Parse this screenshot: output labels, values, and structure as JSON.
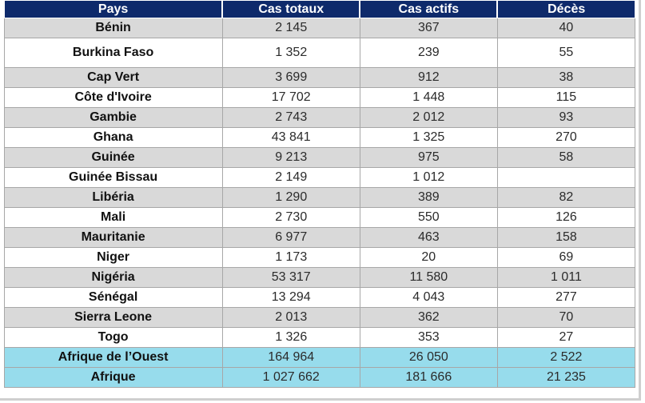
{
  "table": {
    "headers": [
      "Pays",
      "Cas totaux",
      "Cas actifs",
      "Décès"
    ],
    "rows": [
      {
        "country": "Bénin",
        "total": "2 145",
        "active": "367",
        "deaths": "40"
      },
      {
        "country": "Burkina Faso",
        "total": "1 352",
        "active": "239",
        "deaths": "55"
      },
      {
        "country": "Cap Vert",
        "total": "3 699",
        "active": "912",
        "deaths": "38"
      },
      {
        "country": "Côte d'Ivoire",
        "total": "17 702",
        "active": "1 448",
        "deaths": "115"
      },
      {
        "country": "Gambie",
        "total": "2 743",
        "active": "2 012",
        "deaths": "93"
      },
      {
        "country": "Ghana",
        "total": "43 841",
        "active": "1 325",
        "deaths": "270"
      },
      {
        "country": "Guinée",
        "total": "9 213",
        "active": "975",
        "deaths": "58"
      },
      {
        "country": "Guinée Bissau",
        "total": "2 149",
        "active": "1 012",
        "deaths": ""
      },
      {
        "country": "Libéria",
        "total": "1 290",
        "active": "389",
        "deaths": "82"
      },
      {
        "country": "Mali",
        "total": "2 730",
        "active": "550",
        "deaths": "126"
      },
      {
        "country": "Mauritanie",
        "total": "6 977",
        "active": "463",
        "deaths": "158"
      },
      {
        "country": "Niger",
        "total": "1 173",
        "active": "20",
        "deaths": "69"
      },
      {
        "country": "Nigéria",
        "total": "53 317",
        "active": "11 580",
        "deaths": "1 011"
      },
      {
        "country": "Sénégal",
        "total": "13 294",
        "active": "4 043",
        "deaths": "277"
      },
      {
        "country": "Sierra Leone",
        "total": "2 013",
        "active": "362",
        "deaths": "70"
      },
      {
        "country": "Togo",
        "total": "1 326",
        "active": "353",
        "deaths": "27"
      }
    ],
    "totals": [
      {
        "country": "Afrique de l’Ouest",
        "total": "164 964",
        "active": "26 050",
        "deaths": "2 522"
      },
      {
        "country": "Afrique",
        "total": "1 027 662",
        "active": "181 666",
        "deaths": "21 235"
      }
    ]
  },
  "colors": {
    "header_bg": "#0e2a6b",
    "row_gray": "#d9d9d9",
    "row_white": "#ffffff",
    "total_bg": "#97dcec"
  }
}
